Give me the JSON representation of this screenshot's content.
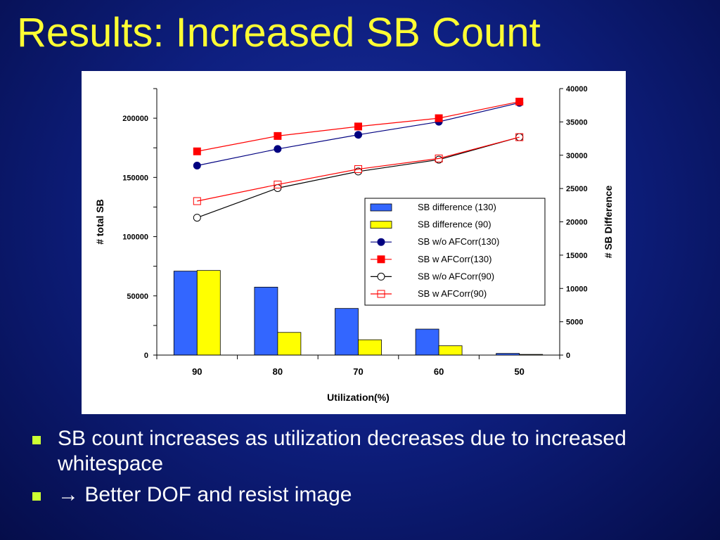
{
  "slide": {
    "title": "Results:  Increased SB Count",
    "bullets": [
      {
        "text": "SB count increases as utilization decreases due to increased whitespace"
      },
      {
        "arrow": "→",
        "text": " Better DOF and resist image"
      }
    ]
  },
  "chart_data": {
    "type": "bar",
    "categories": [
      "90",
      "80",
      "70",
      "60",
      "50"
    ],
    "xlabel": "Utilization(%)",
    "ylabel_left": "# total SB",
    "ylabel_right": "# SB Difference",
    "ylim_left": [
      0,
      225000
    ],
    "ylim_right": [
      0,
      40000
    ],
    "yticks_left": [
      "0",
      "50000",
      "100000",
      "150000",
      "200000"
    ],
    "yticks_right": [
      "0",
      "5000",
      "10000",
      "15000",
      "20000",
      "25000",
      "30000",
      "35000",
      "40000"
    ],
    "legend_position": "center-right",
    "series": [
      {
        "name": "SB difference (130)",
        "kind": "bar",
        "axis": "right",
        "color": "#3366ff",
        "values": [
          12600,
          10200,
          7000,
          3900,
          250
        ]
      },
      {
        "name": "SB difference (90)",
        "kind": "bar",
        "axis": "right",
        "color": "#ffff00",
        "values": [
          12700,
          3400,
          2300,
          1400,
          100
        ]
      },
      {
        "name": "SB w/o AFCorr(130)",
        "kind": "line",
        "axis": "left",
        "color": "#000080",
        "marker": "filled-circle",
        "values": [
          160000,
          174000,
          186000,
          197000,
          213000
        ]
      },
      {
        "name": "SB w AFCorr(130)",
        "kind": "line",
        "axis": "left",
        "color": "#ff0000",
        "marker": "filled-square",
        "values": [
          172000,
          185000,
          193000,
          200000,
          214000
        ]
      },
      {
        "name": "SB w/o AFCorr(90)",
        "kind": "line",
        "axis": "left",
        "color": "#000000",
        "marker": "open-circle",
        "values": [
          116000,
          141000,
          155000,
          165000,
          184000
        ]
      },
      {
        "name": "SB w AFCorr(90)",
        "kind": "line",
        "axis": "left",
        "color": "#ff0000",
        "marker": "open-square",
        "values": [
          130000,
          144000,
          157000,
          166000,
          184000
        ]
      }
    ]
  }
}
